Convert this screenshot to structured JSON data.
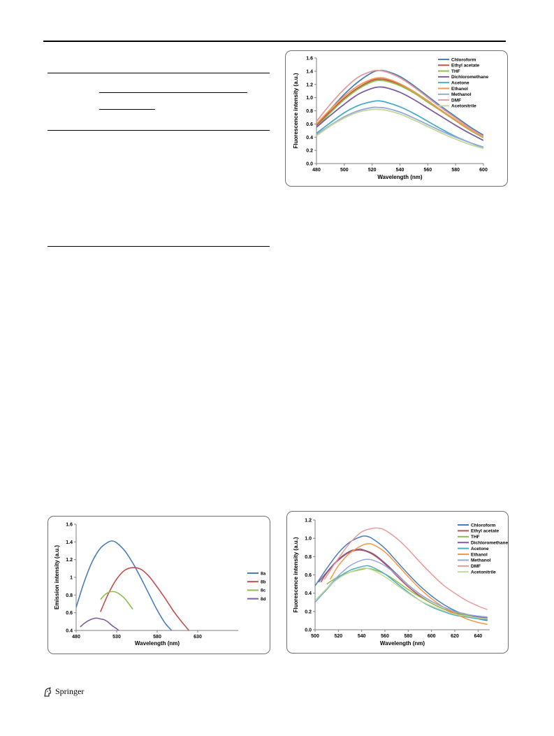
{
  "footer": {
    "publisher": "Springer"
  },
  "colors": {
    "chloroform": "#4a7ebb",
    "ethyl_acetate": "#c0504d",
    "thf": "#8ebf4c",
    "dichloromethane": "#7d5da1",
    "acetone": "#4bacc6",
    "ethanol": "#f79646",
    "methanol": "#94a9d8",
    "dmf": "#e69b9a",
    "acetonitrile": "#c4d79b"
  },
  "chart_data": [
    {
      "type": "line",
      "xlabel": "Wavelength (nm)",
      "ylabel": "Fluorescence intensity (a.u.)",
      "xlim": [
        480,
        600
      ],
      "ylim": [
        0,
        1.6
      ],
      "xticks": [
        "480",
        "500",
        "520",
        "540",
        "560",
        "580",
        "600"
      ],
      "yticks": [
        "0.0",
        "0.2",
        "0.4",
        "0.6",
        "0.8",
        "1.0",
        "1.2",
        "1.4",
        "1.6"
      ],
      "legend_position": "top-right",
      "series": [
        {
          "name": "Chloroform",
          "color": "#4a7ebb",
          "x": [
            480,
            490,
            500,
            510,
            520,
            525,
            530,
            540,
            550,
            560,
            570,
            580,
            590,
            600
          ],
          "y": [
            0.58,
            0.82,
            1.05,
            1.24,
            1.38,
            1.41,
            1.4,
            1.32,
            1.18,
            1.02,
            0.86,
            0.71,
            0.56,
            0.43
          ]
        },
        {
          "name": "Ethyl acetate",
          "color": "#c0504d",
          "x": [
            480,
            490,
            500,
            510,
            520,
            525,
            530,
            540,
            550,
            560,
            570,
            580,
            590,
            600
          ],
          "y": [
            0.58,
            0.79,
            0.99,
            1.15,
            1.26,
            1.28,
            1.27,
            1.2,
            1.09,
            0.95,
            0.8,
            0.66,
            0.52,
            0.4
          ]
        },
        {
          "name": "THF",
          "color": "#8ebf4c",
          "x": [
            480,
            490,
            500,
            510,
            520,
            525,
            530,
            540,
            550,
            560,
            570,
            580,
            590,
            600
          ],
          "y": [
            0.55,
            0.77,
            0.97,
            1.13,
            1.24,
            1.26,
            1.25,
            1.18,
            1.07,
            0.93,
            0.79,
            0.65,
            0.51,
            0.39
          ]
        },
        {
          "name": "Dichloromethane",
          "color": "#7d5da1",
          "x": [
            480,
            490,
            500,
            510,
            520,
            525,
            530,
            540,
            550,
            560,
            570,
            580,
            590,
            600
          ],
          "y": [
            0.55,
            0.73,
            0.9,
            1.05,
            1.14,
            1.16,
            1.15,
            1.08,
            0.97,
            0.84,
            0.71,
            0.58,
            0.46,
            0.35
          ]
        },
        {
          "name": "Acetone",
          "color": "#4bacc6",
          "x": [
            480,
            490,
            500,
            510,
            520,
            525,
            530,
            540,
            550,
            560,
            570,
            580,
            590,
            600
          ],
          "y": [
            0.46,
            0.62,
            0.77,
            0.88,
            0.94,
            0.95,
            0.93,
            0.86,
            0.76,
            0.64,
            0.52,
            0.41,
            0.32,
            0.24
          ]
        },
        {
          "name": "Ethanol",
          "color": "#f79646",
          "x": [
            480,
            490,
            500,
            510,
            520,
            525,
            530,
            540,
            550,
            560,
            570,
            580,
            590,
            600
          ],
          "y": [
            0.6,
            0.82,
            1.02,
            1.18,
            1.28,
            1.3,
            1.29,
            1.21,
            1.09,
            0.95,
            0.8,
            0.66,
            0.52,
            0.4
          ]
        },
        {
          "name": "Methanol",
          "color": "#94a9d8",
          "x": [
            480,
            490,
            500,
            510,
            520,
            525,
            530,
            540,
            550,
            560,
            570,
            580,
            590,
            600
          ],
          "y": [
            0.44,
            0.58,
            0.71,
            0.8,
            0.85,
            0.85,
            0.84,
            0.78,
            0.69,
            0.59,
            0.49,
            0.4,
            0.32,
            0.25
          ]
        },
        {
          "name": "DMF",
          "color": "#e69b9a",
          "x": [
            480,
            490,
            500,
            510,
            520,
            525,
            530,
            540,
            550,
            560,
            570,
            580,
            590,
            600
          ],
          "y": [
            0.64,
            0.9,
            1.13,
            1.31,
            1.4,
            1.41,
            1.39,
            1.3,
            1.16,
            1.0,
            0.84,
            0.69,
            0.54,
            0.41
          ]
        },
        {
          "name": "Acetonitrile",
          "color": "#c4d79b",
          "x": [
            480,
            490,
            500,
            510,
            520,
            525,
            530,
            540,
            550,
            560,
            570,
            580,
            590,
            600
          ],
          "y": [
            0.42,
            0.57,
            0.69,
            0.78,
            0.82,
            0.82,
            0.81,
            0.75,
            0.66,
            0.56,
            0.46,
            0.37,
            0.29,
            0.23
          ]
        }
      ]
    },
    {
      "type": "line",
      "xlabel": "Wavelength (nm)",
      "ylabel": "Emission intensity (a.u.)",
      "xlim": [
        480,
        680
      ],
      "ylim": [
        0.4,
        1.6
      ],
      "xticks": [
        "480",
        "530",
        "580",
        "630"
      ],
      "yticks": [
        "0.4",
        "0.6",
        "0.8",
        "1",
        "1.2",
        "1.4",
        "1.6"
      ],
      "legend_position": "right",
      "series": [
        {
          "name": "8a",
          "color": "#4a7ebb",
          "x": [
            480,
            490,
            500,
            510,
            520,
            525,
            530,
            540,
            550,
            560,
            570,
            580,
            590,
            600
          ],
          "y": [
            0.66,
            0.95,
            1.18,
            1.33,
            1.4,
            1.41,
            1.39,
            1.3,
            1.16,
            0.99,
            0.81,
            0.63,
            0.48,
            0.38
          ]
        },
        {
          "name": "8b",
          "color": "#c0504d",
          "x": [
            510,
            520,
            530,
            540,
            550,
            560,
            570,
            580,
            590,
            600,
            610,
            620
          ],
          "y": [
            0.61,
            0.82,
            0.98,
            1.08,
            1.11,
            1.09,
            1.01,
            0.89,
            0.76,
            0.62,
            0.5,
            0.39
          ]
        },
        {
          "name": "8c",
          "color": "#8ebf4c",
          "x": [
            510,
            515,
            520,
            525,
            530,
            535,
            540,
            545,
            550
          ],
          "y": [
            0.75,
            0.8,
            0.83,
            0.84,
            0.83,
            0.8,
            0.76,
            0.7,
            0.64
          ]
        },
        {
          "name": "8d",
          "color": "#7d5da1",
          "x": [
            485,
            490,
            495,
            500,
            505,
            510,
            515,
            520,
            525,
            530,
            535
          ],
          "y": [
            0.44,
            0.48,
            0.51,
            0.53,
            0.54,
            0.53,
            0.52,
            0.49,
            0.45,
            0.42,
            0.38
          ]
        }
      ]
    },
    {
      "type": "line",
      "xlabel": "Wavelength (nm)",
      "ylabel": "Fluorescence intensity (a.u.)",
      "xlim": [
        500,
        650
      ],
      "ylim": [
        0,
        1.2
      ],
      "xticks": [
        "500",
        "520",
        "540",
        "560",
        "580",
        "600",
        "620",
        "640"
      ],
      "yticks": [
        "0.0",
        "0.2",
        "0.4",
        "0.6",
        "0.8",
        "1.0",
        "1.2"
      ],
      "legend_position": "top-right",
      "series": [
        {
          "name": "Chloroform",
          "color": "#4a7ebb",
          "x": [
            500,
            510,
            520,
            530,
            540,
            545,
            550,
            560,
            570,
            580,
            590,
            600,
            610,
            620,
            630,
            640,
            648
          ],
          "y": [
            0.48,
            0.67,
            0.84,
            0.96,
            1.02,
            1.02,
            0.99,
            0.89,
            0.75,
            0.61,
            0.48,
            0.37,
            0.28,
            0.21,
            0.16,
            0.12,
            0.1
          ]
        },
        {
          "name": "Ethyl acetate",
          "color": "#c0504d",
          "x": [
            505,
            510,
            520,
            530,
            540,
            550,
            560,
            570,
            580,
            590,
            600,
            610,
            620,
            630,
            640,
            648
          ],
          "y": [
            0.52,
            0.62,
            0.76,
            0.85,
            0.87,
            0.82,
            0.72,
            0.59,
            0.47,
            0.37,
            0.29,
            0.23,
            0.18,
            0.15,
            0.13,
            0.12
          ]
        },
        {
          "name": "THF",
          "color": "#8ebf4c",
          "x": [
            510,
            520,
            530,
            540,
            545,
            550,
            560,
            570,
            580,
            590,
            600,
            610,
            620,
            630,
            640,
            648
          ],
          "y": [
            0.5,
            0.58,
            0.63,
            0.66,
            0.67,
            0.66,
            0.61,
            0.53,
            0.44,
            0.36,
            0.29,
            0.23,
            0.19,
            0.16,
            0.14,
            0.13
          ]
        },
        {
          "name": "Dichloromethane",
          "color": "#7d5da1",
          "x": [
            503,
            510,
            520,
            530,
            537,
            540,
            550,
            560,
            570,
            580,
            590,
            600,
            610,
            620,
            630,
            640,
            648
          ],
          "y": [
            0.52,
            0.63,
            0.77,
            0.86,
            0.88,
            0.88,
            0.83,
            0.73,
            0.61,
            0.49,
            0.39,
            0.31,
            0.25,
            0.2,
            0.17,
            0.14,
            0.13
          ]
        },
        {
          "name": "Acetone",
          "color": "#4bacc6",
          "x": [
            500,
            510,
            520,
            530,
            540,
            545,
            550,
            560,
            570,
            580,
            590,
            600,
            610,
            620,
            630,
            640,
            648
          ],
          "y": [
            0.3,
            0.44,
            0.57,
            0.65,
            0.69,
            0.7,
            0.68,
            0.61,
            0.51,
            0.41,
            0.32,
            0.25,
            0.2,
            0.16,
            0.14,
            0.12,
            0.11
          ]
        },
        {
          "name": "Ethanol",
          "color": "#f79646",
          "x": [
            513,
            520,
            530,
            540,
            545,
            550,
            560,
            570,
            580,
            590,
            600,
            610,
            620,
            630,
            640,
            648
          ],
          "y": [
            0.55,
            0.7,
            0.84,
            0.92,
            0.94,
            0.93,
            0.85,
            0.72,
            0.58,
            0.45,
            0.34,
            0.25,
            0.18,
            0.12,
            0.08,
            0.06
          ]
        },
        {
          "name": "Methanol",
          "color": "#94a9d8",
          "x": [
            500,
            510,
            520,
            530,
            540,
            545,
            550,
            560,
            570,
            580,
            590,
            600,
            610,
            620,
            630,
            640,
            648
          ],
          "y": [
            0.3,
            0.45,
            0.59,
            0.7,
            0.76,
            0.77,
            0.76,
            0.7,
            0.6,
            0.49,
            0.39,
            0.31,
            0.25,
            0.2,
            0.17,
            0.15,
            0.14
          ]
        },
        {
          "name": "DMF",
          "color": "#e69b9a",
          "x": [
            508,
            520,
            530,
            540,
            550,
            555,
            560,
            570,
            580,
            590,
            600,
            610,
            620,
            630,
            640,
            648
          ],
          "y": [
            0.55,
            0.78,
            0.95,
            1.07,
            1.11,
            1.11,
            1.09,
            1.0,
            0.88,
            0.74,
            0.61,
            0.49,
            0.4,
            0.32,
            0.26,
            0.22
          ]
        },
        {
          "name": "Acetonitrile",
          "color": "#c4d79b",
          "x": [
            500,
            510,
            520,
            530,
            540,
            545,
            550,
            560,
            570,
            580,
            590,
            600,
            610,
            620,
            630,
            640,
            648
          ],
          "y": [
            0.32,
            0.45,
            0.56,
            0.63,
            0.67,
            0.67,
            0.65,
            0.58,
            0.49,
            0.4,
            0.32,
            0.26,
            0.21,
            0.17,
            0.15,
            0.13,
            0.12
          ]
        }
      ]
    }
  ]
}
